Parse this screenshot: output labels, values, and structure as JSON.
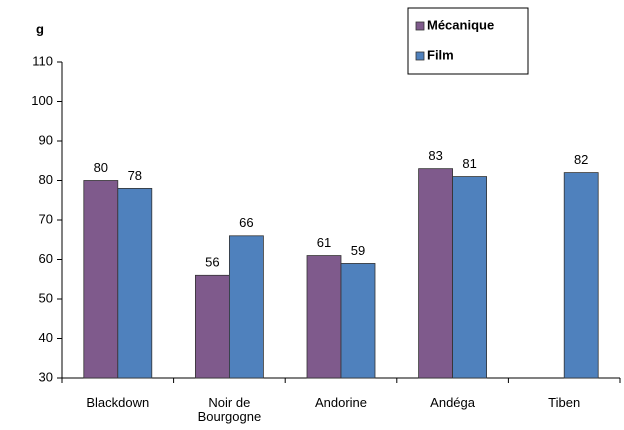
{
  "chart_data": {
    "type": "bar",
    "y_label": "g",
    "categories": [
      "Blackdown",
      "Noir de Bourgogne",
      "Andorine",
      "Andéga",
      "Tiben"
    ],
    "series": [
      {
        "name": "Mécanique",
        "color": "#7f5a8c",
        "values": [
          80,
          56,
          61,
          83,
          null
        ]
      },
      {
        "name": "Film",
        "color": "#4f81bd",
        "values": [
          78,
          66,
          59,
          81,
          82
        ]
      }
    ],
    "ylim": [
      30,
      110
    ],
    "yticks": [
      30,
      40,
      50,
      60,
      70,
      80,
      90,
      100,
      110
    ],
    "grid": false,
    "legend": "top-right"
  }
}
